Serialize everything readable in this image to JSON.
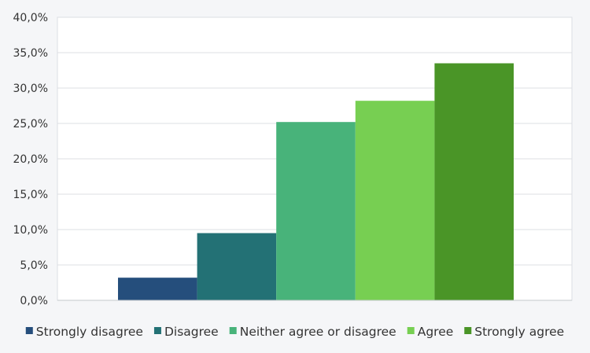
{
  "chart_data": {
    "type": "bar",
    "title": "",
    "xlabel": "",
    "ylabel": "",
    "ylim": [
      0,
      40
    ],
    "yticks": [
      "0,0%",
      "5,0%",
      "10,0%",
      "15,0%",
      "20,0%",
      "25,0%",
      "30,0%",
      "35,0%",
      "40,0%"
    ],
    "grid": true,
    "legend_position": "bottom",
    "series": [
      {
        "name": "Strongly disagree",
        "value": 3.2,
        "color": "#254e7c"
      },
      {
        "name": "Disagree",
        "value": 9.5,
        "color": "#237175"
      },
      {
        "name": "Neither agree or disagree",
        "value": 25.2,
        "color": "#48b37a"
      },
      {
        "name": "Agree",
        "value": 28.2,
        "color": "#77cf52"
      },
      {
        "name": "Strongly agree",
        "value": 33.5,
        "color": "#4a9527"
      }
    ]
  }
}
